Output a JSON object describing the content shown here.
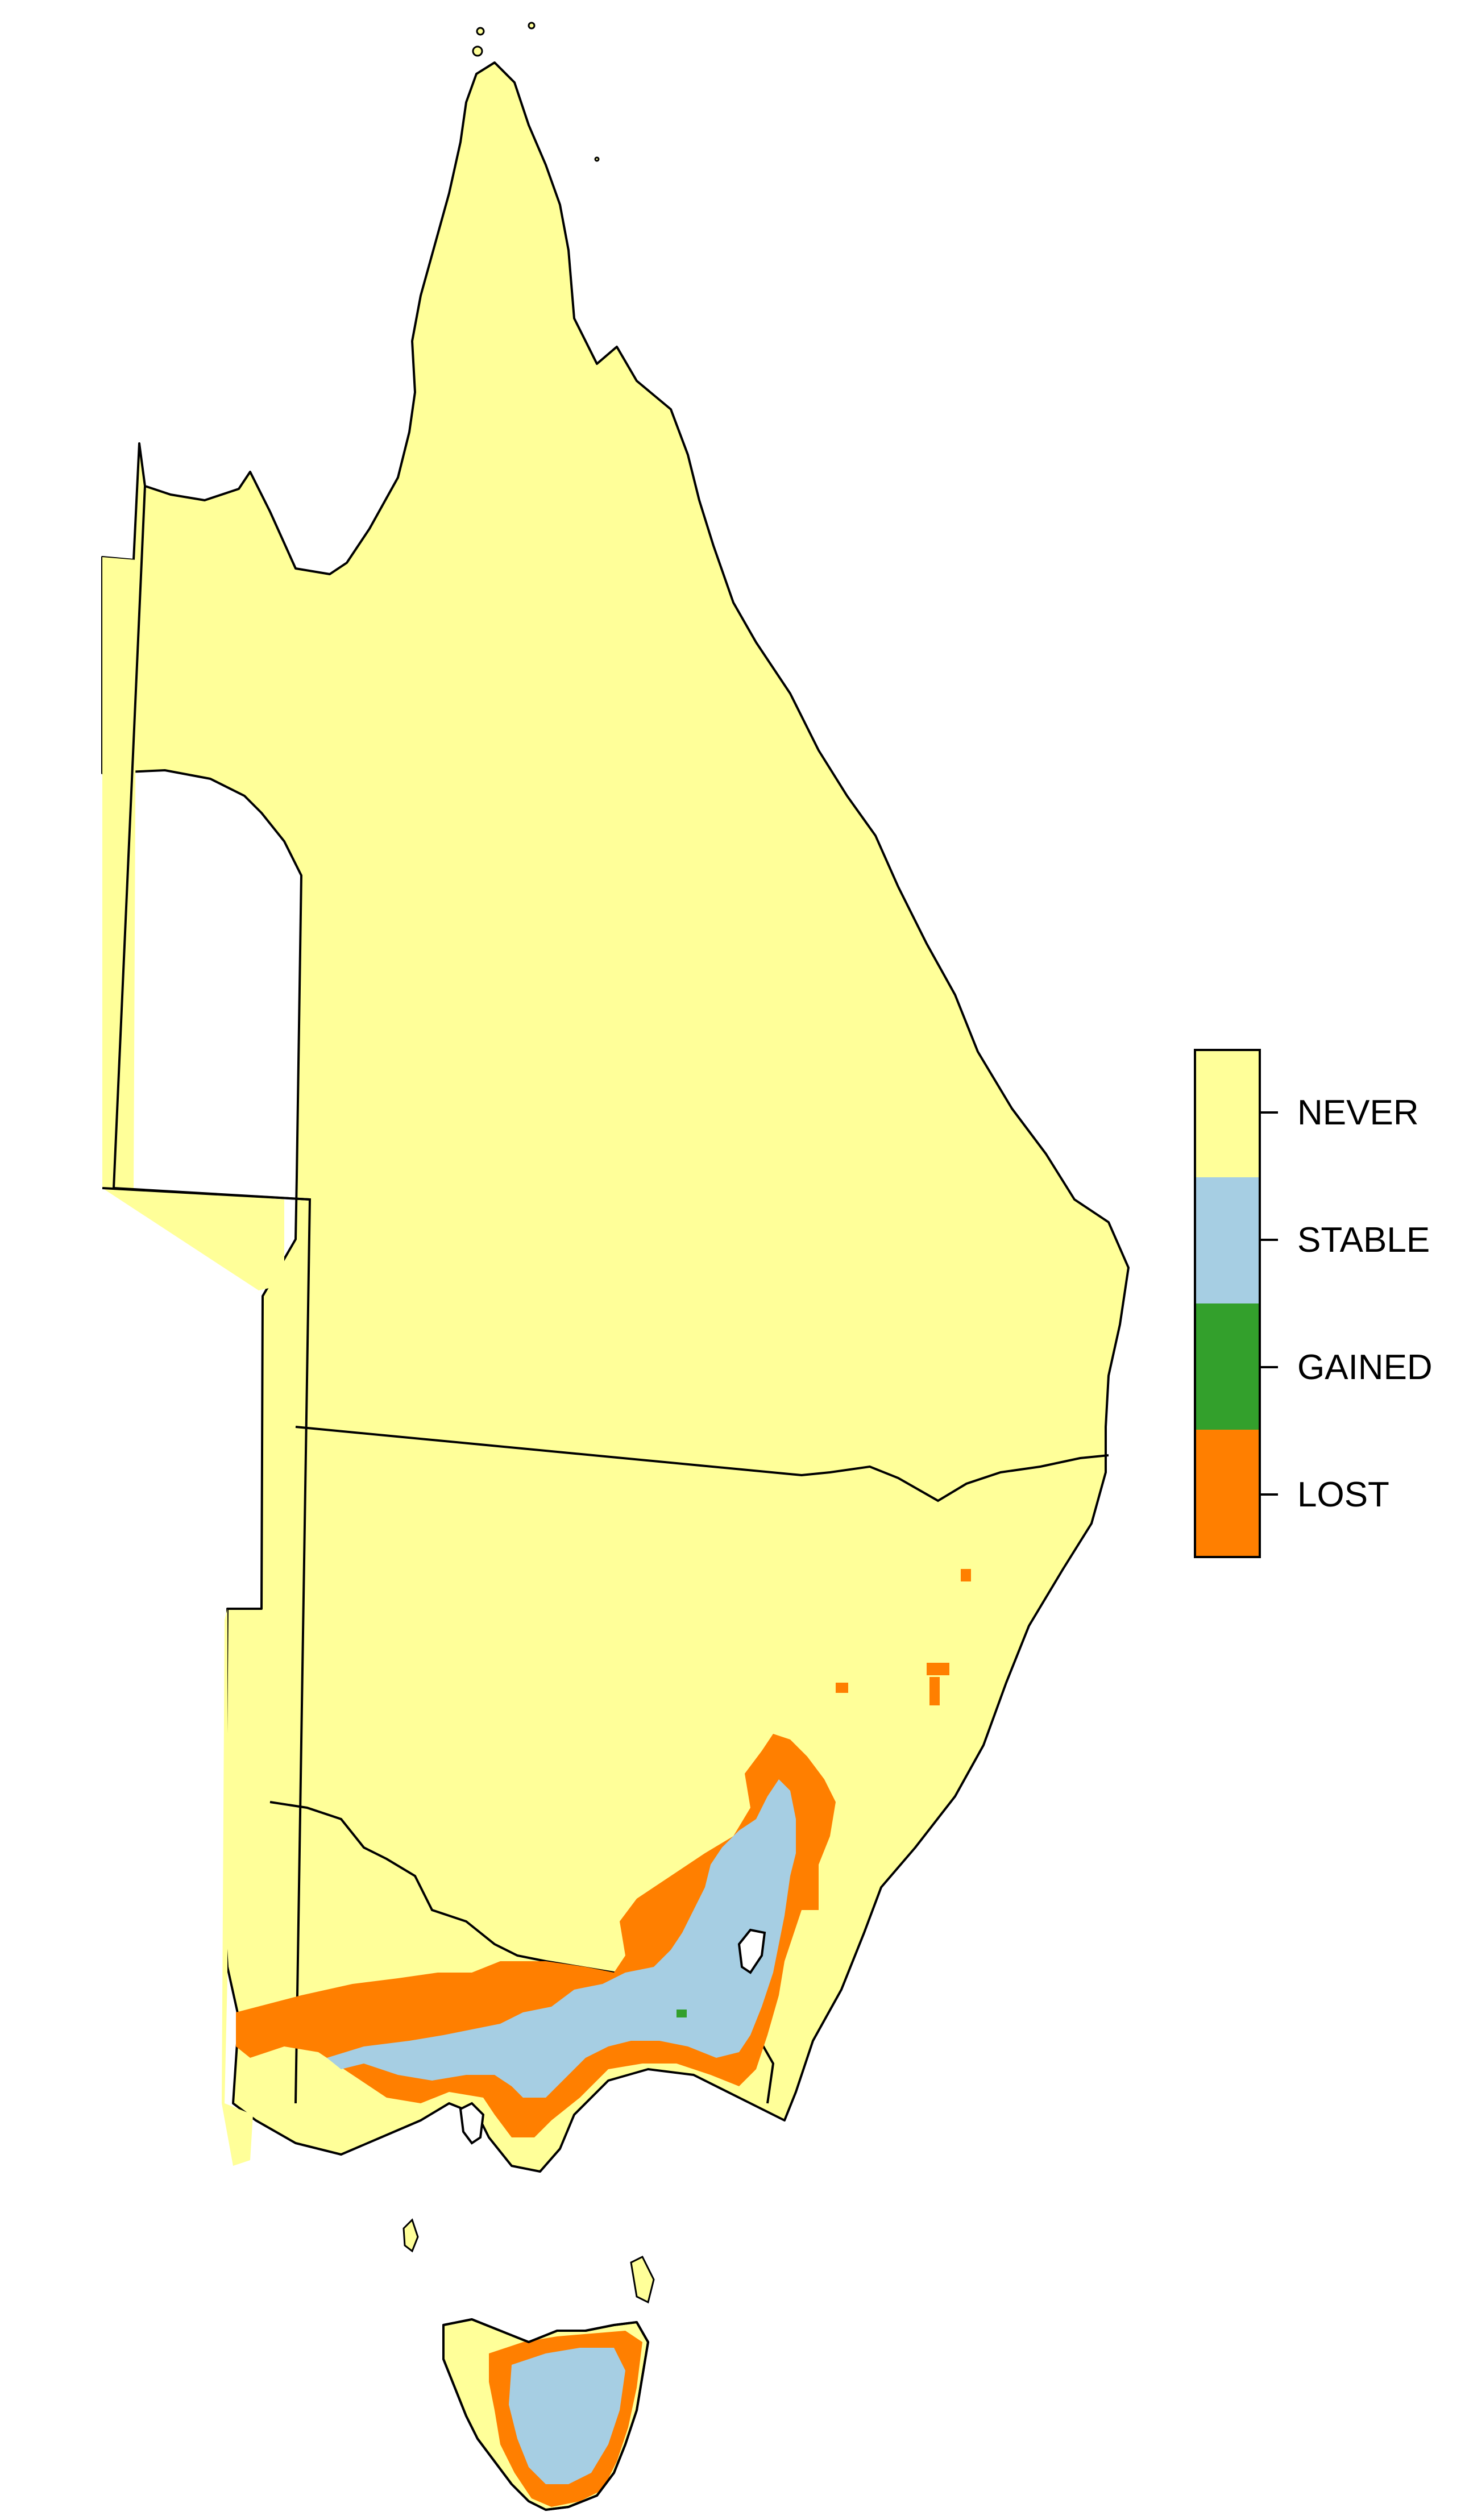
{
  "legend": {
    "items": [
      {
        "label": "NEVER",
        "color": "#ffff99"
      },
      {
        "label": "STABLE",
        "color": "#a6cee3"
      },
      {
        "label": "GAINED",
        "color": "#33a02c"
      },
      {
        "label": "LOST",
        "color": "#ff7f00"
      }
    ]
  },
  "colors": {
    "outline": "#000000",
    "background": "#ffffff"
  }
}
